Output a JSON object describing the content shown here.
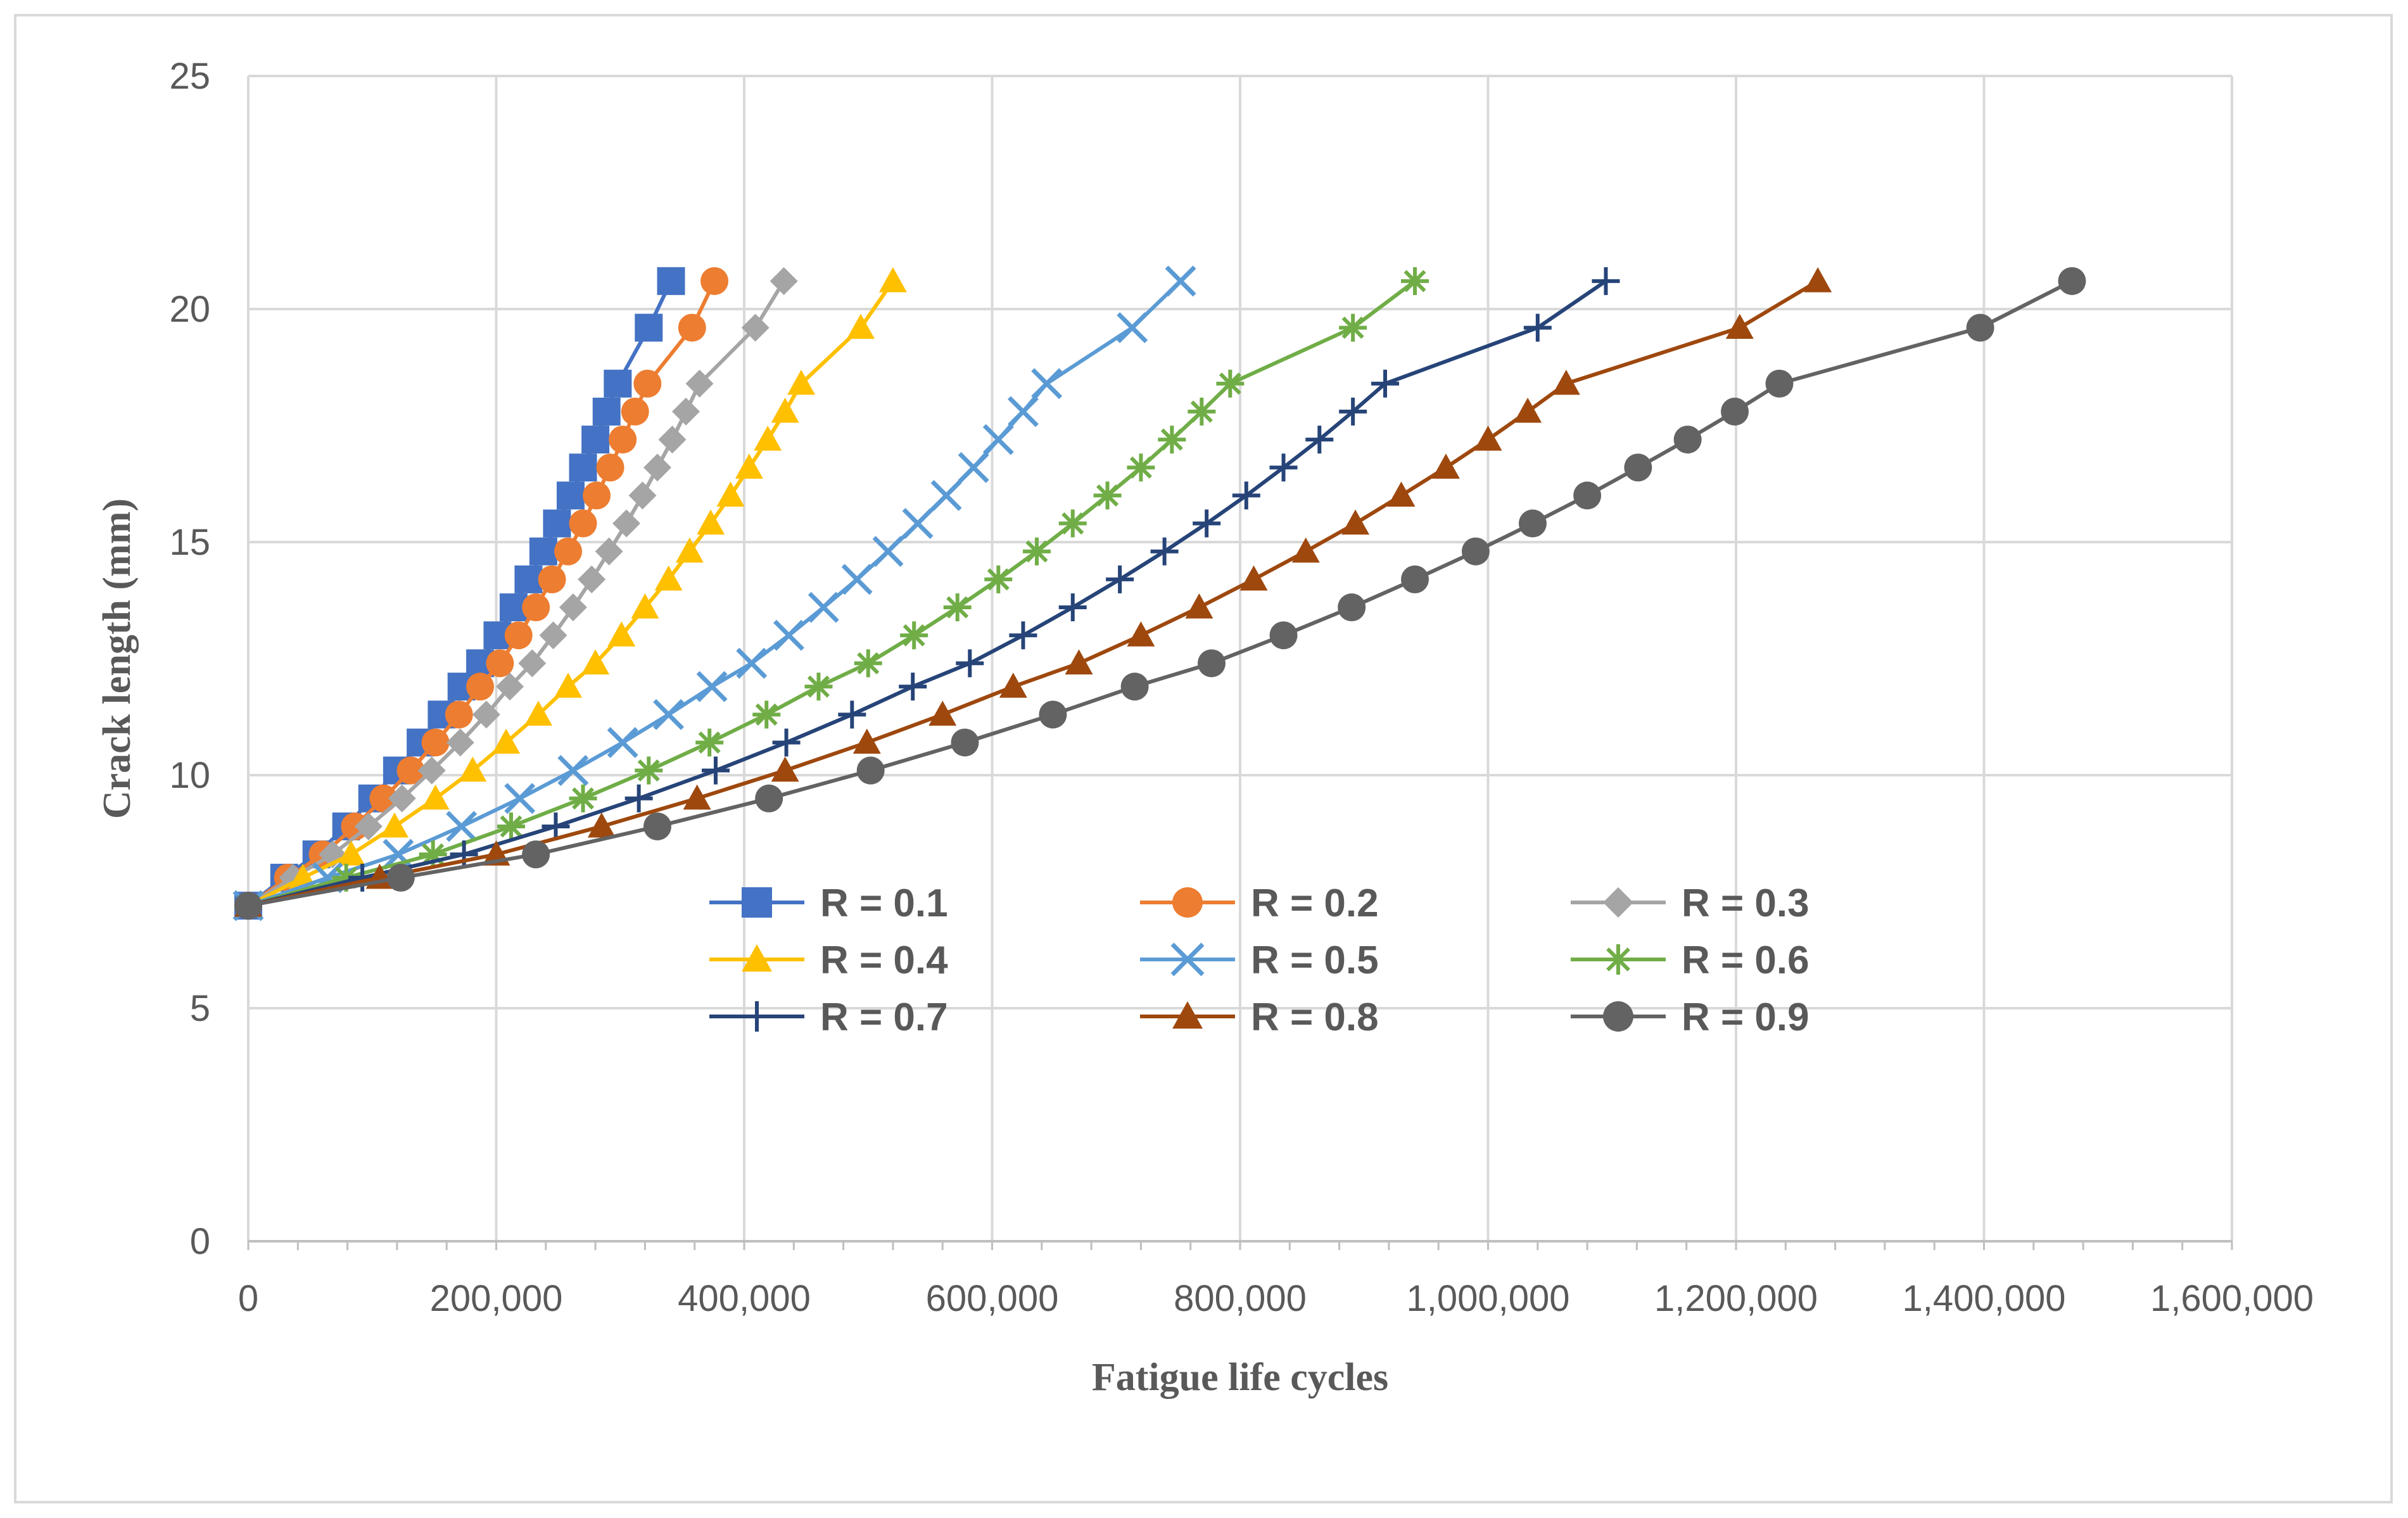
{
  "chart_data": {
    "type": "line",
    "title": "",
    "xlabel": "Fatigue life cycles",
    "ylabel": "Crack length (mm)",
    "xlim": [
      0,
      1600000
    ],
    "ylim": [
      0,
      25
    ],
    "x_ticks": [
      0,
      200000,
      400000,
      600000,
      800000,
      1000000,
      1200000,
      1400000,
      1600000
    ],
    "x_tick_labels": [
      "0",
      "200,000",
      "400,000",
      "600,000",
      "800,000",
      "1,000,000",
      "1,200,000",
      "1,400,000",
      "1,600,000"
    ],
    "y_ticks": [
      0,
      5,
      10,
      15,
      20,
      25
    ],
    "y_tick_labels": [
      "0",
      "5",
      "10",
      "15",
      "20",
      "25"
    ],
    "grid": true,
    "legend_position": "center",
    "crack_lengths": [
      7.2,
      7.8,
      8.3,
      8.9,
      9.5,
      10.1,
      10.7,
      11.3,
      11.9,
      12.4,
      13.0,
      13.6,
      14.2,
      14.8,
      15.4,
      16.0,
      16.6,
      17.2,
      17.8,
      18.4,
      19.6,
      20.6
    ],
    "series": [
      {
        "name": "R = 0.1",
        "color": "#4472c4",
        "marker": "square",
        "x": [
          0,
          29000,
          55000,
          79000,
          100000,
          120000,
          139000,
          156000,
          172000,
          187000,
          201000,
          214000,
          226000,
          238000,
          249000,
          260000,
          270000,
          280000,
          289000,
          298000,
          323000,
          341000
        ]
      },
      {
        "name": "R = 0.2",
        "color": "#ed7d31",
        "marker": "circle",
        "x": [
          0,
          32000,
          60000,
          86000,
          109000,
          131000,
          151000,
          170000,
          187000,
          203000,
          218000,
          232000,
          245000,
          258000,
          270000,
          281000,
          292000,
          302000,
          312000,
          322000,
          358000,
          376000
        ]
      },
      {
        "name": "R = 0.3",
        "color": "#a5a5a5",
        "marker": "diamond",
        "x": [
          0,
          36000,
          68000,
          97000,
          124000,
          148000,
          171000,
          192000,
          211000,
          229000,
          246000,
          262000,
          277000,
          291000,
          305000,
          318000,
          330000,
          342000,
          353000,
          364000,
          409000,
          432000
        ]
      },
      {
        "name": "R = 0.4",
        "color": "#ffc000",
        "marker": "triangle",
        "x": [
          0,
          44000,
          83000,
          118000,
          151000,
          181000,
          208000,
          234000,
          258000,
          280000,
          301000,
          320000,
          339000,
          356000,
          373000,
          389000,
          404000,
          419000,
          433000,
          446000,
          494000,
          520000
        ]
      },
      {
        "name": "R = 0.5",
        "color": "#5b9bd5",
        "marker": "x",
        "x": [
          0,
          64000,
          121000,
          172000,
          219000,
          262000,
          302000,
          339000,
          374000,
          406000,
          436000,
          464000,
          491000,
          516000,
          540000,
          563000,
          585000,
          605000,
          625000,
          644000,
          713000,
          752000
        ]
      },
      {
        "name": "R = 0.6",
        "color": "#70ad47",
        "marker": "star",
        "x": [
          0,
          79000,
          149000,
          212000,
          270000,
          323000,
          372000,
          418000,
          460000,
          500000,
          537000,
          572000,
          605000,
          636000,
          665000,
          693000,
          720000,
          745000,
          769000,
          792000,
          891000,
          941000
        ]
      },
      {
        "name": "R = 0.7",
        "color": "#264478",
        "marker": "plus",
        "x": [
          0,
          92000,
          174000,
          248000,
          315000,
          377000,
          434000,
          487000,
          536000,
          582000,
          625000,
          665000,
          703000,
          739000,
          773000,
          805000,
          835000,
          864000,
          891000,
          917000,
          1040000,
          1095000
        ]
      },
      {
        "name": "R = 0.8",
        "color": "#9e480e",
        "marker": "triangle",
        "x": [
          0,
          106000,
          200000,
          285000,
          362000,
          433000,
          499000,
          560000,
          617000,
          670000,
          720000,
          767000,
          811000,
          853000,
          893000,
          930000,
          966000,
          1000000,
          1032000,
          1063000,
          1203000,
          1266000
        ]
      },
      {
        "name": "R = 0.9",
        "color": "#636363",
        "marker": "circle",
        "x": [
          0,
          123000,
          232000,
          330000,
          420000,
          502000,
          578000,
          649000,
          715000,
          777000,
          835000,
          890000,
          941000,
          990000,
          1036000,
          1080000,
          1121000,
          1161000,
          1199000,
          1235000,
          1397000,
          1471000
        ]
      }
    ]
  }
}
